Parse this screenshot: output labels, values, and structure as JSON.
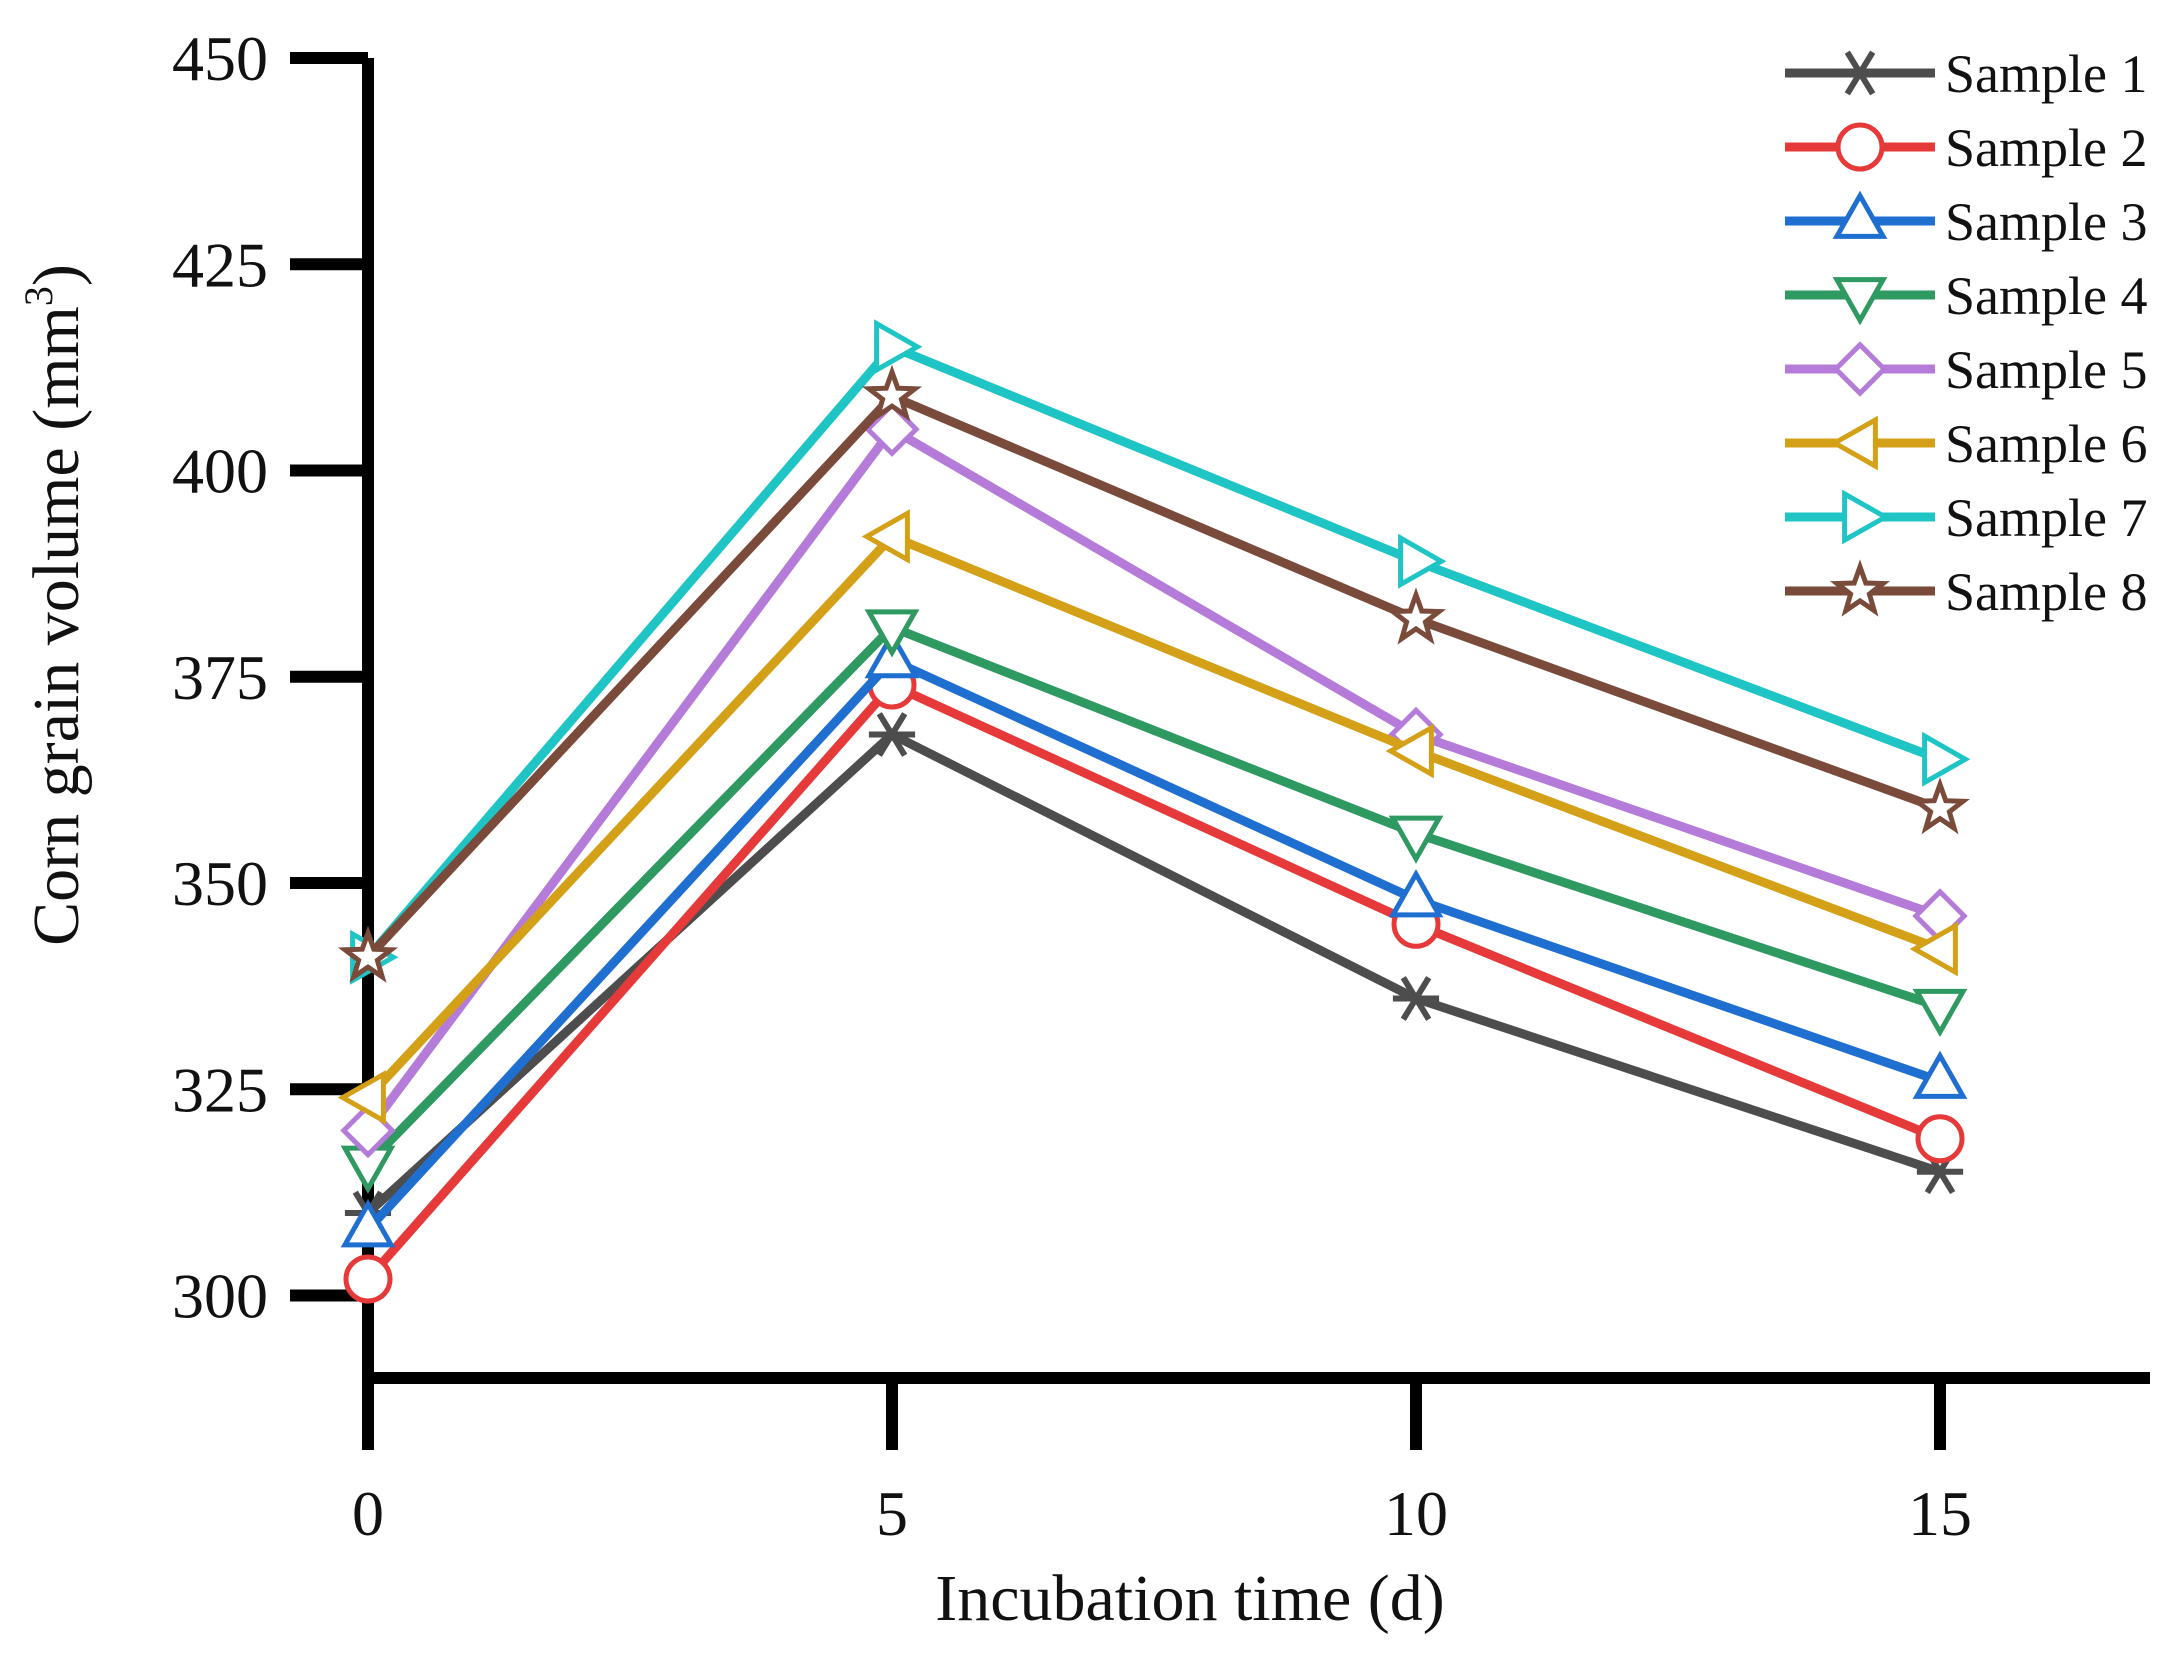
{
  "chart_data": {
    "type": "line",
    "xlabel": "Incubation time (d)",
    "ylabel": "Corn grain volume (mm",
    "ylabel_superscript": "3",
    "ylabel_suffix": ")",
    "x": [
      0,
      5,
      10,
      15
    ],
    "xlim": [
      0,
      17
    ],
    "ylim": [
      290,
      450
    ],
    "xticks": [
      0,
      5,
      10,
      15
    ],
    "yticks": [
      300,
      325,
      350,
      375,
      400,
      425,
      450
    ],
    "grid": false,
    "legend_position": "top-right",
    "series": [
      {
        "name": "Sample 1",
        "color": "#4d4d4d",
        "marker": "asterisk",
        "values": [
          310,
          368,
          336,
          315
        ]
      },
      {
        "name": "Sample 2",
        "color": "#e63a3a",
        "marker": "circle",
        "values": [
          302,
          374,
          345,
          319
        ]
      },
      {
        "name": "Sample 3",
        "color": "#1f6fd1",
        "marker": "triangle-up",
        "values": [
          308,
          377,
          348,
          326
        ]
      },
      {
        "name": "Sample 4",
        "color": "#2e9960",
        "marker": "triangle-down",
        "values": [
          316,
          381,
          356,
          335
        ]
      },
      {
        "name": "Sample 5",
        "color": "#b57bd9",
        "marker": "diamond",
        "values": [
          320,
          405,
          368,
          346
        ]
      },
      {
        "name": "Sample 6",
        "color": "#d4a017",
        "marker": "triangle-left",
        "values": [
          324,
          392,
          366,
          342
        ]
      },
      {
        "name": "Sample 7",
        "color": "#1fc4c4",
        "marker": "triangle-right",
        "values": [
          341,
          415,
          389,
          365
        ]
      },
      {
        "name": "Sample 8",
        "color": "#7a4a3a",
        "marker": "star",
        "values": [
          341,
          409,
          382,
          359
        ]
      }
    ]
  }
}
